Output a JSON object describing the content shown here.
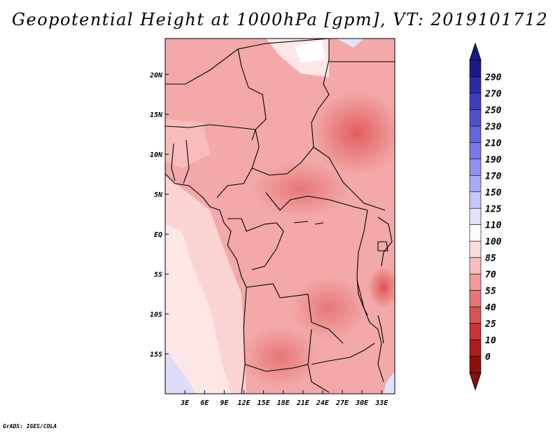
{
  "title": "Geopotential Height at 1000hPa [gpm], VT: 2019101712",
  "footer": "GrADS: IGES/COLA",
  "map": {
    "variable": "Geopotential Height",
    "level": "1000hPa",
    "units": "gpm",
    "valid_time": "2019101712",
    "lon_range": [
      0,
      35
    ],
    "lat_range": [
      -20,
      24.5
    ],
    "x_tick_labels": [
      "3E",
      "6E",
      "9E",
      "12E",
      "15E",
      "18E",
      "21E",
      "24E",
      "27E",
      "30E",
      "33E"
    ],
    "x_tick_values": [
      3,
      6,
      9,
      12,
      15,
      18,
      21,
      24,
      27,
      30,
      33
    ],
    "y_tick_labels": [
      "20N",
      "15N",
      "10N",
      "5N",
      "EQ",
      "5S",
      "10S",
      "15S"
    ],
    "y_tick_values": [
      20,
      15,
      10,
      5,
      0,
      -5,
      -10,
      -15
    ]
  },
  "colorbar": {
    "labels": [
      "290",
      "270",
      "250",
      "230",
      "210",
      "190",
      "170",
      "150",
      "125",
      "110",
      "100",
      "85",
      "70",
      "55",
      "40",
      "25",
      "10",
      "0"
    ],
    "colors": [
      "#1a1a8c",
      "#2b2ba6",
      "#3d3dbd",
      "#5050cf",
      "#6464dd",
      "#7878e8",
      "#9090ee",
      "#a9a9f3",
      "#c6c6f8",
      "#e2e2fb",
      "#fbfbfb",
      "#fbdcdc",
      "#f7bcbc",
      "#f09a9a",
      "#e57676",
      "#d85454",
      "#c83434",
      "#b01b1b",
      "#8f0e0e"
    ],
    "top_arrow_color": "#1a1a8c",
    "bottom_arrow_color": "#8f0e0e"
  }
}
